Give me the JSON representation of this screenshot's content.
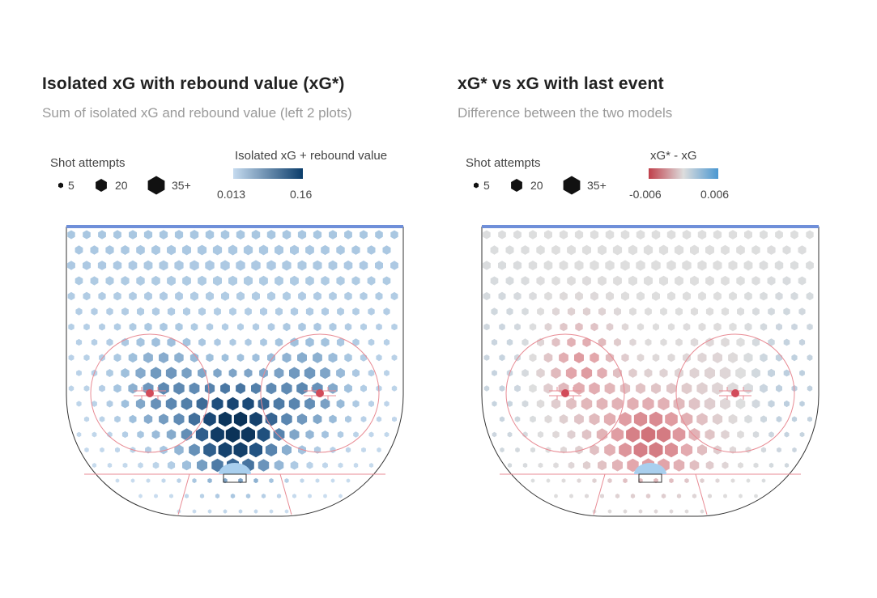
{
  "chart_data": [
    {
      "type": "heatmap",
      "title": "Isolated xG with rebound value (xG*)",
      "subtitle": "Sum of isolated xG and rebound value (left 2 plots)",
      "size_legend": {
        "title": "Shot attempts",
        "entries": [
          "5",
          "20",
          "35+"
        ],
        "values": [
          5,
          20,
          35
        ]
      },
      "color_legend": {
        "title": "Isolated xG + rebound value",
        "min_label": "0.013",
        "max_label": "0.16",
        "range": [
          0.013,
          0.16
        ],
        "colors": [
          "#c6dbef",
          "#0b3d6b"
        ]
      },
      "color_scale": "sequential-blue",
      "legend_placement": "top",
      "grid": false
    },
    {
      "type": "heatmap",
      "title": "xG* vs xG with last event",
      "subtitle": "Difference between the two models",
      "size_legend": {
        "title": "Shot attempts",
        "entries": [
          "5",
          "20",
          "35+"
        ],
        "values": [
          5,
          20,
          35
        ]
      },
      "color_legend": {
        "title": "xG* - xG",
        "min_label": "-0.006",
        "max_label": "0.006",
        "range": [
          -0.006,
          0.006
        ],
        "colors": [
          "#c0404b",
          "#dddddd",
          "#4a97d1"
        ]
      },
      "color_scale": "diverging-red-blue",
      "legend_placement": "top",
      "grid": false
    }
  ]
}
